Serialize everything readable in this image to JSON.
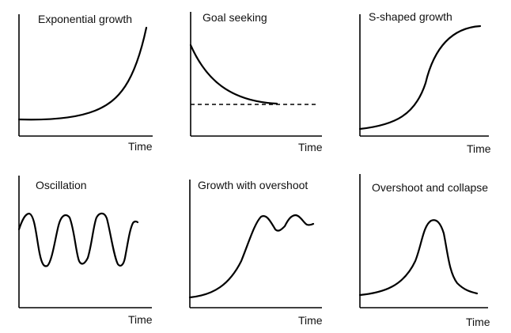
{
  "panels": [
    {
      "title": "Exponential growth",
      "xlabel": "Time"
    },
    {
      "title": "Goal seeking",
      "xlabel": "Time"
    },
    {
      "title": "S-shaped growth",
      "xlabel": "Time"
    },
    {
      "title": "Oscillation",
      "xlabel": "Time"
    },
    {
      "title": "Growth with overshoot",
      "xlabel": "Time"
    },
    {
      "title": "Overshoot and collapse",
      "xlabel": "Time"
    }
  ]
}
